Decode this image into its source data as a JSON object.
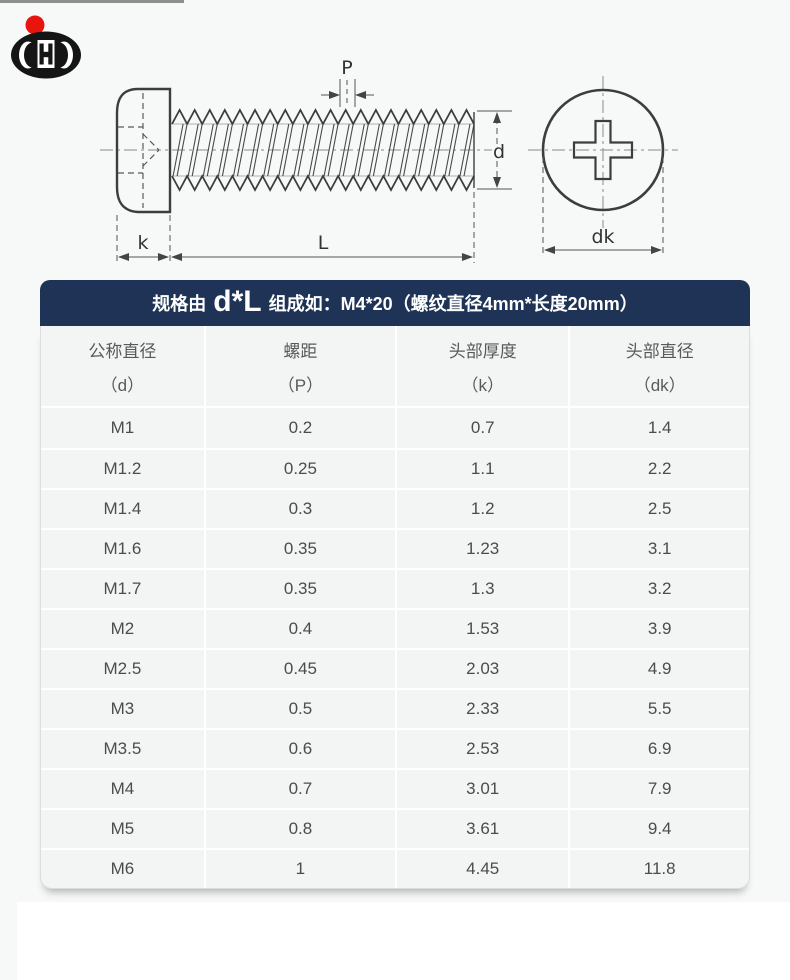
{
  "page": {
    "bg_color": "#f7f8f8",
    "top_line_color": "#8e8f91"
  },
  "logo": {
    "body_color": "#151515",
    "dot_color": "#e8150e"
  },
  "diagram": {
    "labels": {
      "pitch": "P",
      "thread_diameter": "d",
      "head_height": "k",
      "length": "L",
      "head_diameter": "dk"
    }
  },
  "spec_table": {
    "header_bg": "#1e3356",
    "title": {
      "prefix": "规格由",
      "emphasis": "d*L",
      "suffix": "组成如：M4*20（螺纹直径4mm*长度20mm）"
    },
    "columns": [
      {
        "name": "公称直径",
        "symbol": "（d）"
      },
      {
        "name": "螺距",
        "symbol": "（P）"
      },
      {
        "name": "头部厚度",
        "symbol": "（k）"
      },
      {
        "name": "头部直径",
        "symbol": "（dk）"
      }
    ],
    "rows": [
      [
        "M1",
        "0.2",
        "0.7",
        "1.4"
      ],
      [
        "M1.2",
        "0.25",
        "1.1",
        "2.2"
      ],
      [
        "M1.4",
        "0.3",
        "1.2",
        "2.5"
      ],
      [
        "M1.6",
        "0.35",
        "1.23",
        "3.1"
      ],
      [
        "M1.7",
        "0.35",
        "1.3",
        "3.2"
      ],
      [
        "M2",
        "0.4",
        "1.53",
        "3.9"
      ],
      [
        "M2.5",
        "0.45",
        "2.03",
        "4.9"
      ],
      [
        "M3",
        "0.5",
        "2.33",
        "5.5"
      ],
      [
        "M3.5",
        "0.6",
        "2.53",
        "6.9"
      ],
      [
        "M4",
        "0.7",
        "3.01",
        "7.9"
      ],
      [
        "M5",
        "0.8",
        "3.61",
        "9.4"
      ],
      [
        "M6",
        "1",
        "4.45",
        "11.8"
      ]
    ]
  }
}
